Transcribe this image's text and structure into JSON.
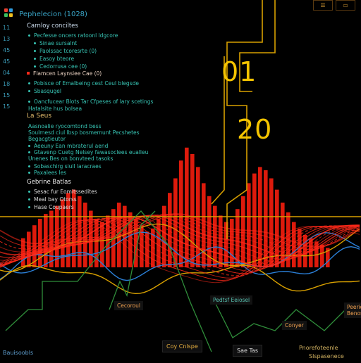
{
  "app": {
    "title": "Pephelecion (1028)",
    "icon_colors": [
      "#e94030",
      "#2f9de0",
      "#3cc060",
      "#f0c020"
    ]
  },
  "window_controls": {
    "buttons": [
      "☰",
      "▭"
    ]
  },
  "gutter_numbers": [
    "11",
    "13",
    "45",
    "45",
    "04",
    "18",
    "15",
    "15"
  ],
  "sidebar": {
    "section1": {
      "heading": "Carnloy conciltes",
      "items": [
        "Pecfesse oncers ratoonl ldgcore",
        "Sinae sursalnt",
        "Paolssac tcoresrte (0)",
        "Easoy bteore",
        "Cedorrusa cee (0)"
      ]
    },
    "section2": {
      "red_items": [
        "Flamcen Laynsiee Cae (0)"
      ],
      "items": [
        "Pobisce of Emalbeing cest Ceul blegsde",
        "Sbasqugel"
      ]
    },
    "section3": {
      "items": [
        "Oancfucear Blots Tar Cfpeses of lary scetings",
        "Hatalsite hus bolsea"
      ]
    },
    "section4": {
      "heading": "La Seus",
      "items": [
        "Aasnoalie ryocomtond bess",
        "Soulmesd ciul lbsp bosmemunt Pecshetes",
        "Begacgtieutor",
        "Aeeuny Ean mbraterul aend",
        "Gtavenp Cuetg Nelsey fawasoclees eualleu",
        "Unenes Bes on bonvteed tasoks",
        "Sobaschirg siull laracraes",
        "Paxalees les"
      ]
    },
    "section5": {
      "heading": "Gebrine Batlas",
      "items": [
        "Sesac fur Eomitssedites",
        "Meal bay Otorss",
        "Hase Coupaers"
      ]
    }
  },
  "overlay": {
    "big_numbers": [
      "01",
      "20"
    ],
    "box_labels": [
      "Pedtsf Eeiosel",
      "Cecoroul",
      "Conyer",
      "Peerid Benosed"
    ],
    "bottom_tags": [
      "Coy Cnlspe",
      "Sae Tas"
    ],
    "bottom_left": "Bauisoobls",
    "bottom_right_items": [
      "Pnorefoteenle",
      "Slspasenece"
    ]
  },
  "chart_data": {
    "type": "bar",
    "colors": {
      "bars": "#dd1a0c",
      "waves": "#ff2a1a",
      "blue_line": "#2b7fd6",
      "gold_line": "#d8a000",
      "green_line": "#3aa040"
    },
    "bar_heights": [
      0.18,
      0.22,
      0.26,
      0.3,
      0.33,
      0.35,
      0.38,
      0.42,
      0.46,
      0.48,
      0.44,
      0.4,
      0.35,
      0.3,
      0.28,
      0.32,
      0.36,
      0.4,
      0.38,
      0.34,
      0.3,
      0.26,
      0.22,
      0.24,
      0.3,
      0.38,
      0.46,
      0.55,
      0.66,
      0.74,
      0.7,
      0.62,
      0.52,
      0.44,
      0.38,
      0.32,
      0.28,
      0.3,
      0.36,
      0.44,
      0.52,
      0.58,
      0.62,
      0.6,
      0.55,
      0.48,
      0.4,
      0.34,
      0.28,
      0.24,
      0.2,
      0.18,
      0.16,
      0.14,
      0.12
    ]
  }
}
